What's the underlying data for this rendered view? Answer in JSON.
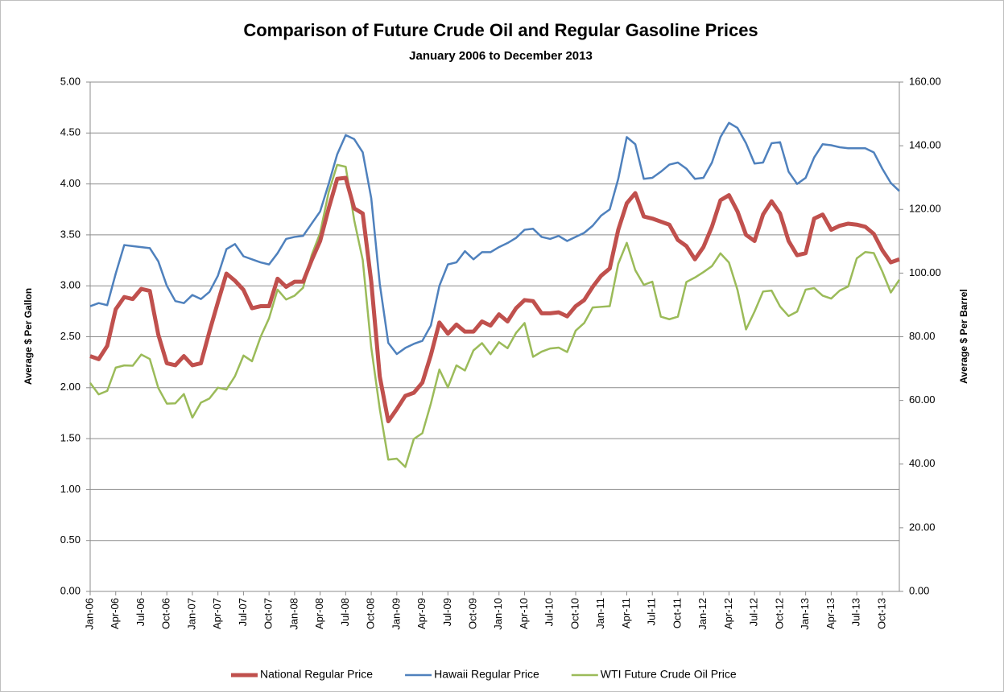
{
  "chart_data": {
    "type": "line",
    "title": "Comparison of Future Crude Oil and Regular Gasoline Prices",
    "subtitle": "January 2006 to December 2013",
    "y_label": "Average $ Per Gallon",
    "y2_label": "Average $ Per Barrel",
    "categories": [
      "Jan-06",
      null,
      null,
      "Apr-06",
      null,
      null,
      "Jul-06",
      null,
      null,
      "Oct-06",
      null,
      null,
      "Jan-07",
      null,
      null,
      "Apr-07",
      null,
      null,
      "Jul-07",
      null,
      null,
      "Oct-07",
      null,
      null,
      "Jan-08",
      null,
      null,
      "Apr-08",
      null,
      null,
      "Jul-08",
      null,
      null,
      "Oct-08",
      null,
      null,
      "Jan-09",
      null,
      null,
      "Apr-09",
      null,
      null,
      "Jul-09",
      null,
      null,
      "Oct-09",
      null,
      null,
      "Jan-10",
      null,
      null,
      "Apr-10",
      null,
      null,
      "Jul-10",
      null,
      null,
      "Oct-10",
      null,
      null,
      "Jan-11",
      null,
      null,
      "Apr-11",
      null,
      null,
      "Jul-11",
      null,
      null,
      "Oct-11",
      null,
      null,
      "Jan-12",
      null,
      null,
      "Apr-12",
      null,
      null,
      "Jul-12",
      null,
      null,
      "Oct-12",
      null,
      null,
      "Jan-13",
      null,
      null,
      "Apr-13",
      null,
      null,
      "Jul-13",
      null,
      null,
      "Oct-13",
      null,
      null
    ],
    "ylim": [
      0,
      5
    ],
    "yticks": [
      {
        "value": 0,
        "label": "0.00"
      },
      {
        "value": 0.5,
        "label": "0.50"
      },
      {
        "value": 1,
        "label": "1.00"
      },
      {
        "value": 1.5,
        "label": "1.50"
      },
      {
        "value": 2,
        "label": "2.00"
      },
      {
        "value": 2.5,
        "label": "2.50"
      },
      {
        "value": 3,
        "label": "3.00"
      },
      {
        "value": 3.5,
        "label": "3.50"
      },
      {
        "value": 4,
        "label": "4.00"
      },
      {
        "value": 4.5,
        "label": "4.50"
      },
      {
        "value": 5,
        "label": "5.00"
      }
    ],
    "y2lim": [
      0,
      160
    ],
    "y2ticks": [
      {
        "value": 0,
        "label": "0.00"
      },
      {
        "value": 20,
        "label": "20.00"
      },
      {
        "value": 40,
        "label": "40.00"
      },
      {
        "value": 60,
        "label": "60.00"
      },
      {
        "value": 80,
        "label": "80.00"
      },
      {
        "value": 100,
        "label": "100.00"
      },
      {
        "value": 120,
        "label": "120.00"
      },
      {
        "value": 140,
        "label": "140.00"
      },
      {
        "value": 160,
        "label": "160.00"
      }
    ],
    "grid": true,
    "legend": "bottom",
    "series": [
      {
        "name": "National Regular Price",
        "color": "#c0504d",
        "width": 5,
        "values": [
          2.31,
          2.28,
          2.41,
          2.77,
          2.89,
          2.87,
          2.97,
          2.95,
          2.52,
          2.24,
          2.22,
          2.31,
          2.22,
          2.24,
          2.55,
          2.84,
          3.12,
          3.05,
          2.96,
          2.78,
          2.8,
          2.8,
          3.07,
          2.99,
          3.04,
          3.04,
          3.25,
          3.44,
          3.76,
          4.05,
          4.06,
          3.76,
          3.71,
          3.04,
          2.11,
          1.67,
          1.79,
          1.92,
          1.95,
          2.05,
          2.32,
          2.64,
          2.53,
          2.62,
          2.55,
          2.55,
          2.65,
          2.61,
          2.72,
          2.65,
          2.78,
          2.86,
          2.85,
          2.73,
          2.73,
          2.74,
          2.7,
          2.8,
          2.86,
          2.99,
          3.1,
          3.17,
          3.55,
          3.81,
          3.91,
          3.68,
          3.66,
          3.63,
          3.6,
          3.45,
          3.39,
          3.26,
          3.38,
          3.58,
          3.84,
          3.89,
          3.73,
          3.5,
          3.44,
          3.7,
          3.83,
          3.71,
          3.44,
          3.3,
          3.32,
          3.66,
          3.7,
          3.55,
          3.59,
          3.61,
          3.6,
          3.58,
          3.51,
          3.35,
          3.23,
          3.26
        ]
      },
      {
        "name": "Hawaii Regular Price",
        "color": "#4f81bd",
        "width": 2.5,
        "values": [
          2.8,
          2.83,
          2.81,
          3.12,
          3.4,
          3.39,
          3.38,
          3.37,
          3.24,
          3.0,
          2.85,
          2.83,
          2.91,
          2.87,
          2.94,
          3.1,
          3.36,
          3.41,
          3.29,
          3.26,
          3.23,
          3.21,
          3.32,
          3.46,
          3.48,
          3.49,
          3.61,
          3.73,
          4.0,
          4.29,
          4.48,
          4.44,
          4.31,
          3.86,
          3.02,
          2.44,
          2.33,
          2.39,
          2.43,
          2.46,
          2.61,
          3.0,
          3.21,
          3.23,
          3.34,
          3.26,
          3.33,
          3.33,
          3.38,
          3.42,
          3.47,
          3.55,
          3.56,
          3.48,
          3.46,
          3.49,
          3.44,
          3.48,
          3.52,
          3.59,
          3.69,
          3.75,
          4.05,
          4.46,
          4.39,
          4.05,
          4.06,
          4.12,
          4.19,
          4.21,
          4.15,
          4.05,
          4.06,
          4.21,
          4.46,
          4.6,
          4.55,
          4.4,
          4.2,
          4.21,
          4.4,
          4.41,
          4.12,
          4.0,
          4.06,
          4.26,
          4.39,
          4.38,
          4.36,
          4.35,
          4.35,
          4.35,
          4.31,
          4.15,
          4.01,
          3.93
        ]
      },
      {
        "name": "WTI Future Crude Oil Price",
        "color": "#9bbb59",
        "width": 2.5,
        "axis": "y2",
        "values": [
          65.5,
          61.9,
          63.0,
          70.3,
          71.0,
          70.9,
          74.4,
          73.0,
          63.9,
          59.0,
          59.1,
          62.0,
          54.6,
          59.3,
          60.6,
          64.0,
          63.4,
          67.6,
          74.1,
          72.3,
          79.9,
          85.8,
          94.8,
          91.7,
          92.9,
          95.4,
          105.6,
          112.6,
          125.4,
          134.0,
          133.4,
          116.6,
          104.1,
          76.6,
          57.3,
          41.4,
          41.7,
          39.1,
          47.9,
          49.7,
          59.0,
          69.7,
          64.1,
          71.0,
          69.4,
          75.7,
          78.0,
          74.5,
          78.3,
          76.4,
          81.2,
          84.3,
          73.7,
          75.3,
          76.3,
          76.6,
          75.2,
          81.9,
          84.3,
          89.2,
          89.4,
          89.6,
          102.9,
          109.5,
          100.9,
          96.3,
          97.3,
          86.3,
          85.5,
          86.3,
          97.2,
          98.6,
          100.3,
          102.2,
          106.2,
          103.3,
          94.7,
          82.3,
          87.9,
          94.2,
          94.5,
          89.5,
          86.5,
          87.9,
          94.8,
          95.3,
          92.9,
          92.0,
          94.5,
          95.8,
          104.6,
          106.6,
          106.3,
          100.5,
          93.9,
          97.9
        ]
      }
    ]
  }
}
